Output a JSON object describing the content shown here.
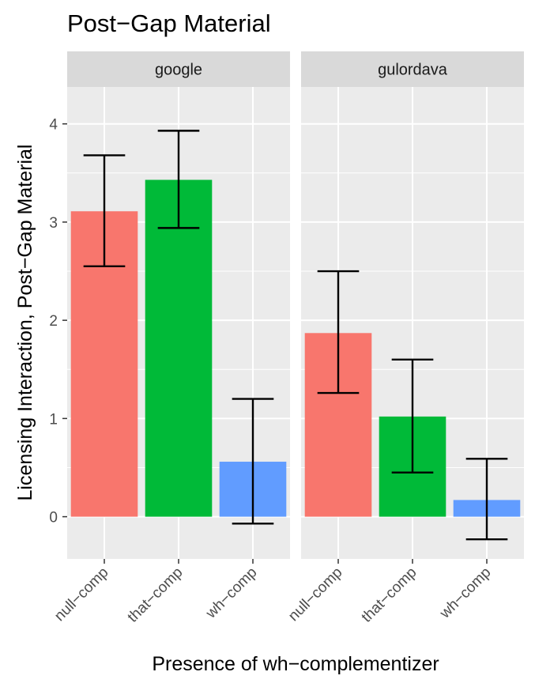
{
  "chart_data": {
    "type": "bar",
    "title": "Post−Gap Material",
    "xlabel": "Presence of wh−complementizer",
    "ylabel": "Licensing Interaction, Post−Gap Material",
    "ylim": [
      -0.43,
      4.4
    ],
    "y_ticks": [
      0,
      1,
      2,
      3,
      4
    ],
    "categories": [
      "null−comp",
      "that−comp",
      "wh−comp"
    ],
    "colors": {
      "null−comp": "#F8766D",
      "that−comp": "#00BA38",
      "wh−comp": "#619CFF"
    },
    "grid": true,
    "legend": "none",
    "facets": [
      {
        "label": "google",
        "values": [
          3.11,
          3.43,
          0.56
        ],
        "error_low": [
          2.55,
          2.94,
          -0.07
        ],
        "error_high": [
          3.68,
          3.93,
          1.2
        ]
      },
      {
        "label": "gulordava",
        "values": [
          1.87,
          1.02,
          0.17
        ],
        "error_low": [
          1.26,
          0.45,
          -0.23
        ],
        "error_high": [
          2.5,
          1.6,
          0.59
        ]
      }
    ]
  }
}
